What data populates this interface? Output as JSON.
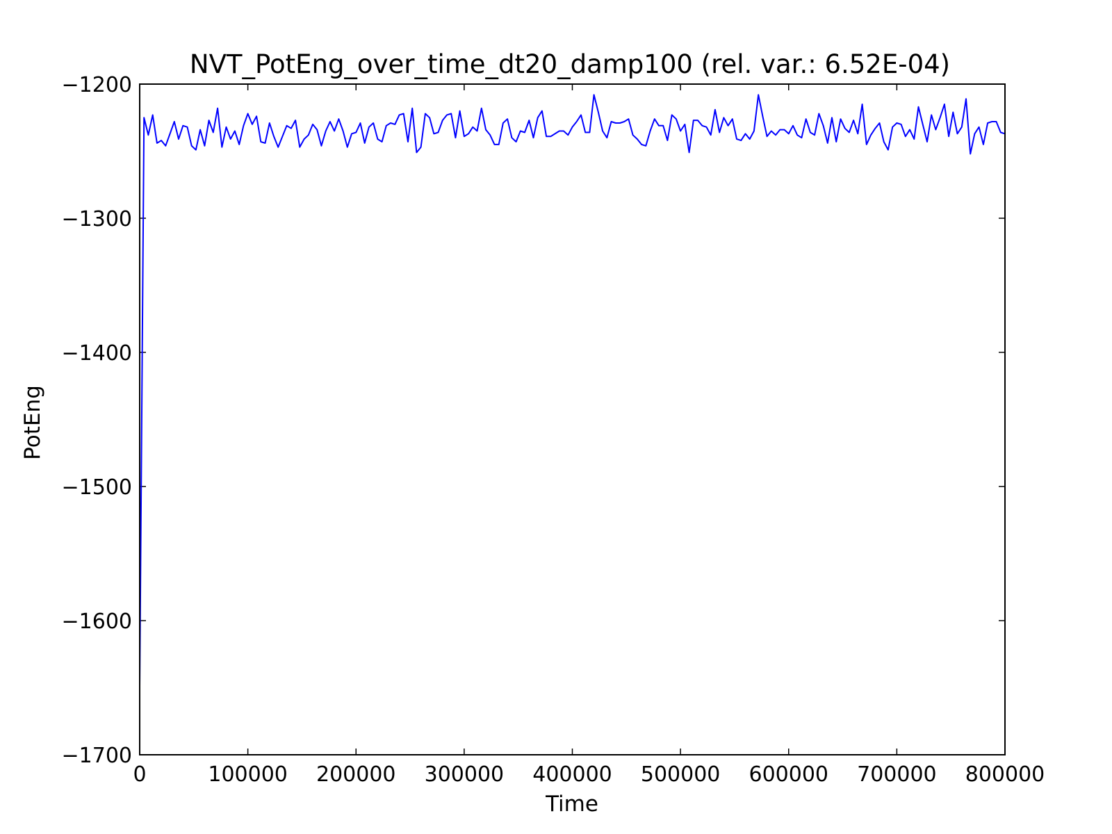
{
  "chart_data": {
    "type": "line",
    "title": "NVT_PotEng_over_time_dt20_damp100 (rel. var.: 6.52E-04)",
    "xlabel": "Time",
    "ylabel": "PotEng",
    "xlim": [
      0,
      800000
    ],
    "ylim": [
      -1700,
      -1200
    ],
    "x_ticks": [
      0,
      100000,
      200000,
      300000,
      400000,
      500000,
      600000,
      700000,
      800000
    ],
    "x_tick_labels": [
      "0",
      "100000",
      "200000",
      "300000",
      "400000",
      "500000",
      "600000",
      "700000",
      "800000"
    ],
    "y_ticks": [
      -1200,
      -1300,
      -1400,
      -1500,
      -1600,
      -1700
    ],
    "y_tick_labels": [
      "−1200",
      "−1300",
      "−1400",
      "−1500",
      "−1600",
      "−1700"
    ],
    "grid": false,
    "legend": "none",
    "series": [
      {
        "color": "#0000ff",
        "x": [
          0,
          4000,
          8000,
          12000,
          16000,
          20000,
          24000,
          28000,
          32000,
          36000,
          40000,
          44000,
          48000,
          52000,
          56000,
          60000,
          64000,
          68000,
          72000,
          76000,
          80000,
          84000,
          88000,
          92000,
          96000,
          100000,
          104000,
          108000,
          112000,
          116000,
          120000,
          124000,
          128000,
          132000,
          136000,
          140000,
          144000,
          148000,
          152000,
          156000,
          160000,
          164000,
          168000,
          172000,
          176000,
          180000,
          184000,
          188000,
          192000,
          196000,
          200000,
          204000,
          208000,
          212000,
          216000,
          220000,
          224000,
          228000,
          232000,
          236000,
          240000,
          244000,
          248000,
          252000,
          256000,
          260000,
          264000,
          268000,
          272000,
          276000,
          280000,
          284000,
          288000,
          292000,
          296000,
          300000,
          304000,
          308000,
          312000,
          316000,
          320000,
          324000,
          328000,
          332000,
          336000,
          340000,
          344000,
          348000,
          352000,
          356000,
          360000,
          364000,
          368000,
          372000,
          376000,
          380000,
          384000,
          388000,
          392000,
          396000,
          400000,
          404000,
          408000,
          412000,
          416000,
          420000,
          424000,
          428000,
          432000,
          436000,
          440000,
          444000,
          448000,
          452000,
          456000,
          460000,
          464000,
          468000,
          472000,
          476000,
          480000,
          484000,
          488000,
          492000,
          496000,
          500000,
          504000,
          508000,
          512000,
          516000,
          520000,
          524000,
          528000,
          532000,
          536000,
          540000,
          544000,
          548000,
          552000,
          556000,
          560000,
          564000,
          568000,
          572000,
          576000,
          580000,
          584000,
          588000,
          592000,
          596000,
          600000,
          604000,
          608000,
          612000,
          616000,
          620000,
          624000,
          628000,
          632000,
          636000,
          640000,
          644000,
          648000,
          652000,
          656000,
          660000,
          664000,
          668000,
          672000,
          676000,
          680000,
          684000,
          688000,
          692000,
          696000,
          700000,
          704000,
          708000,
          712000,
          716000,
          720000,
          724000,
          728000,
          732000,
          736000,
          740000,
          744000,
          748000,
          752000,
          756000,
          760000,
          764000,
          768000,
          772000,
          776000,
          780000,
          784000,
          788000,
          792000,
          796000,
          800000
        ],
        "y": [
          -1650,
          -1225,
          -1238,
          -1223,
          -1244,
          -1242,
          -1246,
          -1237,
          -1228,
          -1241,
          -1231,
          -1232,
          -1246,
          -1249,
          -1234,
          -1246,
          -1227,
          -1236,
          -1218,
          -1247,
          -1232,
          -1241,
          -1235,
          -1245,
          -1231,
          -1222,
          -1230,
          -1224,
          -1243,
          -1244,
          -1229,
          -1239,
          -1247,
          -1239,
          -1231,
          -1233,
          -1227,
          -1247,
          -1241,
          -1238,
          -1230,
          -1234,
          -1246,
          -1235,
          -1228,
          -1235,
          -1226,
          -1235,
          -1247,
          -1237,
          -1236,
          -1229,
          -1244,
          -1232,
          -1229,
          -1241,
          -1243,
          -1231,
          -1229,
          -1230,
          -1223,
          -1222,
          -1243,
          -1218,
          -1251,
          -1247,
          -1222,
          -1225,
          -1237,
          -1236,
          -1227,
          -1223,
          -1222,
          -1240,
          -1220,
          -1239,
          -1237,
          -1232,
          -1235,
          -1218,
          -1234,
          -1238,
          -1245,
          -1245,
          -1229,
          -1226,
          -1240,
          -1243,
          -1235,
          -1236,
          -1227,
          -1240,
          -1225,
          -1220,
          -1239,
          -1239,
          -1237,
          -1235,
          -1235,
          -1238,
          -1232,
          -1228,
          -1223,
          -1236,
          -1236,
          -1208,
          -1221,
          -1235,
          -1240,
          -1228,
          -1229,
          -1229,
          -1228,
          -1226,
          -1238,
          -1241,
          -1245,
          -1246,
          -1235,
          -1226,
          -1231,
          -1231,
          -1242,
          -1223,
          -1226,
          -1235,
          -1230,
          -1251,
          -1227,
          -1227,
          -1231,
          -1232,
          -1238,
          -1219,
          -1236,
          -1225,
          -1231,
          -1226,
          -1241,
          -1242,
          -1237,
          -1241,
          -1235,
          -1208,
          -1224,
          -1239,
          -1235,
          -1238,
          -1234,
          -1234,
          -1237,
          -1231,
          -1238,
          -1240,
          -1226,
          -1236,
          -1238,
          -1222,
          -1231,
          -1244,
          -1225,
          -1243,
          -1226,
          -1233,
          -1236,
          -1227,
          -1237,
          -1215,
          -1245,
          -1238,
          -1233,
          -1229,
          -1243,
          -1249,
          -1232,
          -1229,
          -1230,
          -1239,
          -1234,
          -1241,
          -1217,
          -1230,
          -1243,
          -1223,
          -1234,
          -1225,
          -1215,
          -1239,
          -1221,
          -1237,
          -1232,
          -1211,
          -1252,
          -1237,
          -1232,
          -1245,
          -1229,
          -1228,
          -1228,
          -1236,
          -1237
        ]
      }
    ]
  }
}
